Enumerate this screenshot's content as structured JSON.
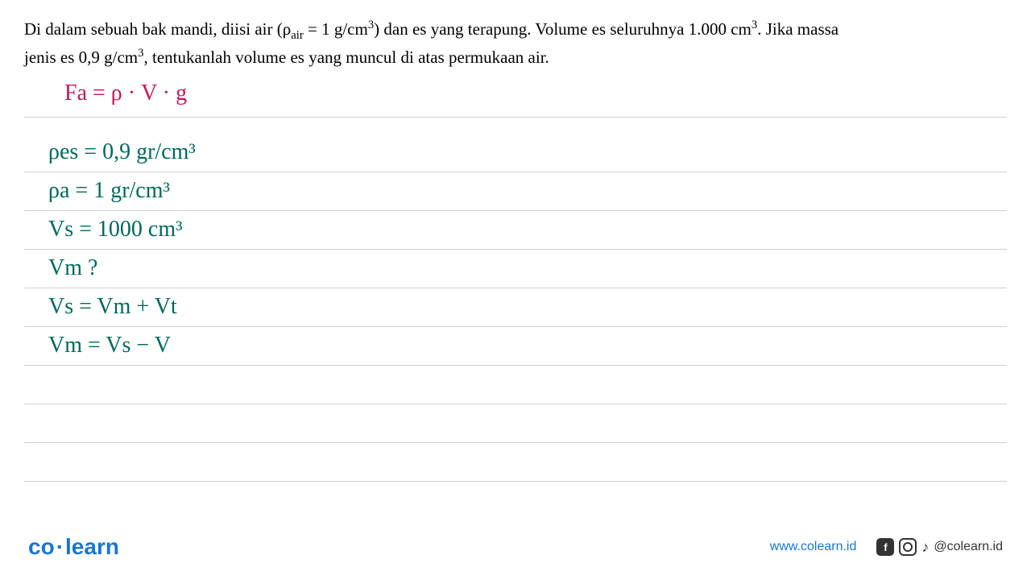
{
  "problem": {
    "line1_part1": "Di dalam sebuah bak mandi, diisi air (ρ",
    "line1_sub": "air",
    "line1_part2": " = 1 g/cm",
    "line1_sup1": "3",
    "line1_part3": ") dan es yang terapung. Volume es seluruhnya 1.000 cm",
    "line1_sup2": "3",
    "line1_part4": ". Jika massa",
    "line2_part1": "jenis es 0,9 g/cm",
    "line2_sup": "3",
    "line2_part2": ", tentukanlah volume es yang muncul di atas permukaan air."
  },
  "formula": {
    "text": "Fa = ρ · V · g",
    "color": "#c2185b"
  },
  "work": [
    {
      "text": "ρes = 0,9 gr/cm³",
      "color": "#00695c"
    },
    {
      "text": "ρa = 1 gr/cm³",
      "color": "#00695c"
    },
    {
      "text": "Vs = 1000 cm³",
      "color": "#00695c"
    },
    {
      "text": "Vm ?",
      "color": "#00695c"
    },
    {
      "text": "Vs = Vm + Vt",
      "color": "#00695c"
    },
    {
      "text": "Vm = Vs − V",
      "color": "#00695c"
    }
  ],
  "footer": {
    "logo_part1": "co",
    "logo_dot": "·",
    "logo_part2": "learn",
    "website": "www.colearn.id",
    "handle": "@colearn.id"
  },
  "styling": {
    "problem_font_size": 21,
    "handwriting_font_size": 28,
    "line_color": "#d0d0d0",
    "pink_color": "#c2185b",
    "teal_color": "#00695c",
    "logo_color": "#1976d2",
    "background": "#ffffff"
  }
}
